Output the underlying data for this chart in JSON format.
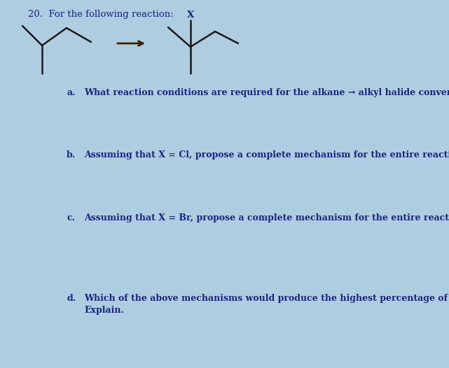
{
  "background_color": "#aecde0",
  "title_number": "20.",
  "title_text": "  For the following reaction:",
  "question_a_label": "a.",
  "question_a_text": "What reaction conditions are required for the alkane → alkyl halide conversion?",
  "question_b_label": "b.",
  "question_b_text": "Assuming that X = Cl, propose a complete mechanism for the entire reaction.",
  "question_c_label": "c.",
  "question_c_text": "Assuming that X = Br, propose a complete mechanism for the entire reaction.",
  "question_d_label": "d.",
  "question_d_text1": "Which of the above mechanisms would produce the highest percentage of desired product?",
  "question_d_text2": "Explain.",
  "font_color": "#1a237e",
  "font_size_title": 9.5,
  "font_size_questions": 9.0,
  "bond_color": "#1a1a1a",
  "x_label": "X"
}
